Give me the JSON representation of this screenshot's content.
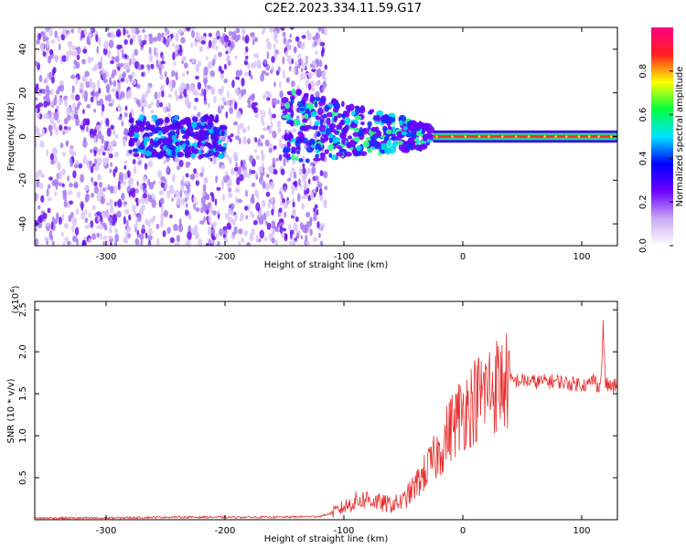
{
  "title": "C2E2.2023.334.11.59.G17",
  "chart_data": [
    {
      "type": "heatmap",
      "xlabel": "Height of straight line (km)",
      "ylabel": "Frequency (Hz)",
      "xlim": [
        -360,
        130
      ],
      "ylim": [
        -50,
        50
      ],
      "xticks": [
        -300,
        -200,
        -100,
        0,
        100
      ],
      "yticks": [
        -40,
        -20,
        0,
        20,
        40
      ],
      "colorbar": {
        "label": "Normalized spectral amplitude",
        "range": [
          0.0,
          1.0
        ],
        "ticks": [
          "0.0",
          "0.2",
          "0.4",
          "0.6",
          "0.8"
        ],
        "colors": [
          "#ffffff",
          "#c9a8f5",
          "#6b00ff",
          "#0000ff",
          "#00e5ff",
          "#00ff40",
          "#ffff00",
          "#ff2020",
          "#ff0080"
        ]
      },
      "features": {
        "noise_region_x": [
          -360,
          -115
        ],
        "noise_band_x": [
          -280,
          -200
        ],
        "signal_onset_x": -25,
        "carrier_frequency": 0
      }
    },
    {
      "type": "line",
      "xlabel": "Height of straight line (km)",
      "ylabel": "SNR (10 * v/v)",
      "y_multiplier": "(x10",
      "y_multiplier_exp": "4",
      "xlim": [
        -360,
        130
      ],
      "ylim": [
        0,
        2.6
      ],
      "xticks": [
        -300,
        -200,
        -100,
        0,
        100
      ],
      "yticks": [
        "0.5",
        "1.0",
        "1.5",
        "2.0",
        "2.5"
      ],
      "color": "#e8302f",
      "series": [
        {
          "x": [
            -360,
            -300,
            -250,
            -200,
            -150,
            -120,
            -110,
            -100,
            -90,
            -80,
            -70,
            -60,
            -50,
            -40,
            -30,
            -20,
            -15,
            -10,
            -5,
            0,
            10,
            20,
            30,
            40,
            50,
            60,
            70,
            80,
            90,
            100,
            105,
            110,
            113,
            116,
            118,
            120,
            125,
            130
          ],
          "y": [
            0.02,
            0.02,
            0.03,
            0.03,
            0.03,
            0.04,
            0.08,
            0.15,
            0.22,
            0.25,
            0.2,
            0.18,
            0.22,
            0.4,
            0.6,
            0.8,
            0.95,
            1.1,
            1.2,
            1.3,
            1.42,
            1.55,
            1.62,
            1.65,
            1.66,
            1.64,
            1.65,
            1.65,
            1.62,
            1.62,
            1.6,
            1.68,
            1.6,
            1.62,
            2.3,
            1.62,
            1.58,
            1.6
          ]
        }
      ]
    }
  ]
}
